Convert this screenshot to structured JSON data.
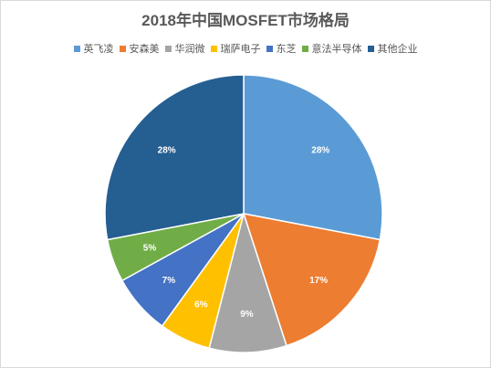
{
  "chart_data": {
    "type": "pie",
    "title": "2018年中国MOSFET市场格局",
    "legend_position": "top",
    "slices": [
      {
        "name": "英飞凌",
        "value": 28,
        "label": "28%",
        "color": "#5b9bd5"
      },
      {
        "name": "安森美",
        "value": 17,
        "label": "17%",
        "color": "#ed7d31"
      },
      {
        "name": "华润微",
        "value": 9,
        "label": "9%",
        "color": "#a5a5a5"
      },
      {
        "name": "瑞萨电子",
        "value": 6,
        "label": "6%",
        "color": "#ffc000"
      },
      {
        "name": "东芝",
        "value": 7,
        "label": "7%",
        "color": "#4472c4"
      },
      {
        "name": "意法半导体",
        "value": 5,
        "label": "5%",
        "color": "#70ad47"
      },
      {
        "name": "其他企业",
        "value": 28,
        "label": "28%",
        "color": "#255e91"
      }
    ]
  }
}
